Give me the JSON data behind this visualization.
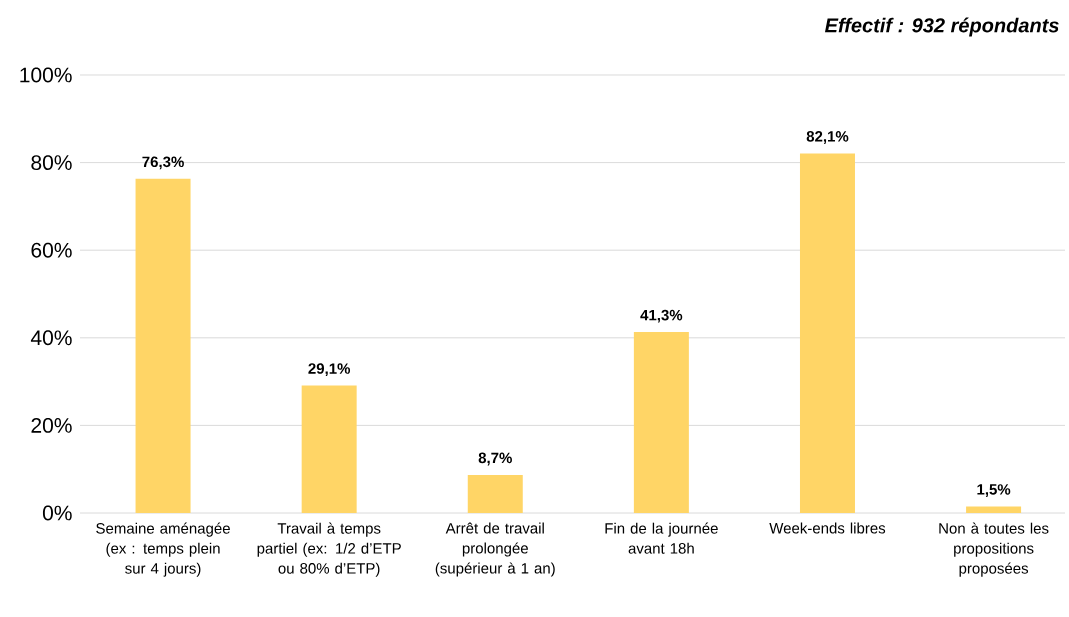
{
  "chart_data": {
    "type": "bar",
    "title": "Effectif : 932 répondants",
    "categories": [
      "Semaine aménagée (ex : temps plein sur 4 jours)",
      "Travail à temps partiel (ex: 1/2 d’ETP ou 80% d’ETP)",
      "Arrêt de travail prolongée (supérieur à 1 an)",
      "Fin de la journée avant 18h",
      "Week-ends libres",
      "Non à toutes les propositions proposées"
    ],
    "values": [
      76.3,
      29.1,
      8.7,
      41.3,
      82.1,
      1.5
    ],
    "value_labels": [
      "76,3%",
      "29,1%",
      "8,7%",
      "41,3%",
      "82,1%",
      "1,5%"
    ],
    "color": "#ffd566",
    "ylim": [
      0,
      100
    ],
    "yticks": [
      {
        "value": 0,
        "label": "0%"
      },
      {
        "value": 20,
        "label": "20%"
      },
      {
        "value": 40,
        "label": "40%"
      },
      {
        "value": 60,
        "label": "60%"
      },
      {
        "value": 80,
        "label": "80%"
      },
      {
        "value": 100,
        "label": "100%"
      }
    ],
    "grid": "y"
  }
}
